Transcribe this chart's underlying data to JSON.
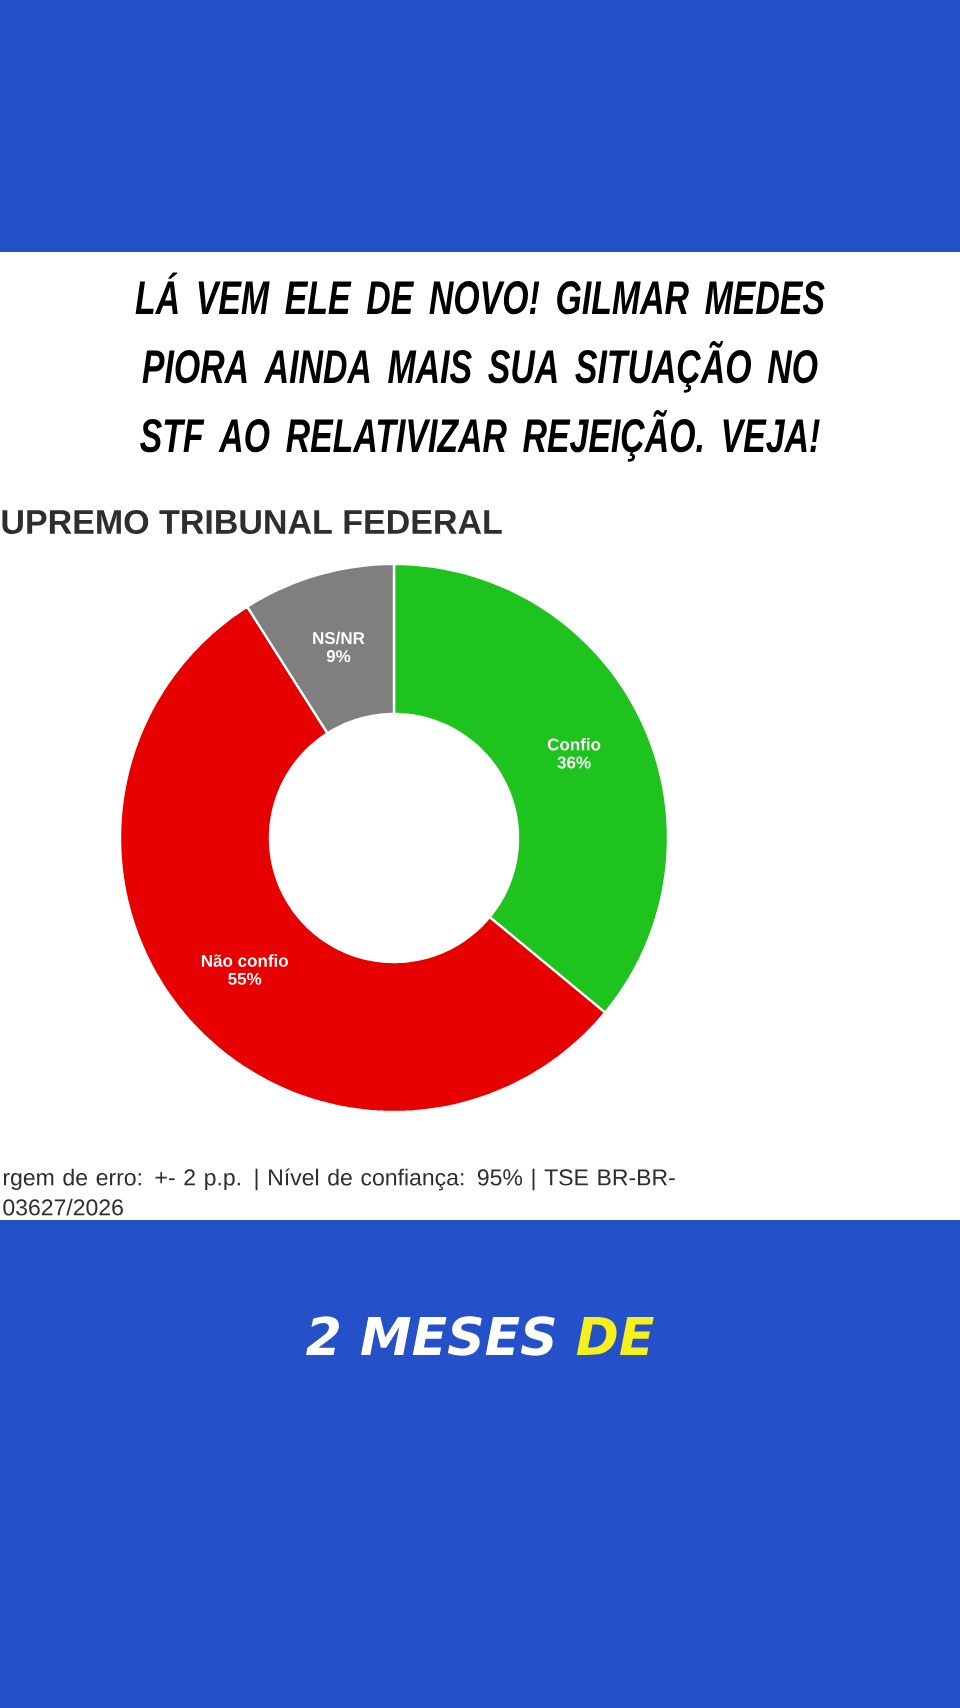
{
  "chart_data": {
    "type": "donut",
    "title": "LÁ VEM ELE DE NOVO! GILMAR MEDES PIORA AINDA MAIS SUA SITUAÇÃO NO STF AO RELATIVIZAR REJEIÇÃO. VEJA!",
    "subtitle": "UPREMO TRIBUNAL FEDERAL",
    "categories": [
      "Confio",
      "Não confio",
      "NS/NR"
    ],
    "values": [
      36,
      55,
      9
    ],
    "colors": [
      "#1ec31e",
      "#e60000",
      "#7f7f7f"
    ],
    "value_labels": [
      "36%",
      "55%",
      "9%"
    ],
    "annotations": [
      "rgem de erro: +- 2 p.p. | Nível de confiança: 95% | TSE BR-BR-03627/2026",
      "2 MESES",
      "DE"
    ]
  }
}
